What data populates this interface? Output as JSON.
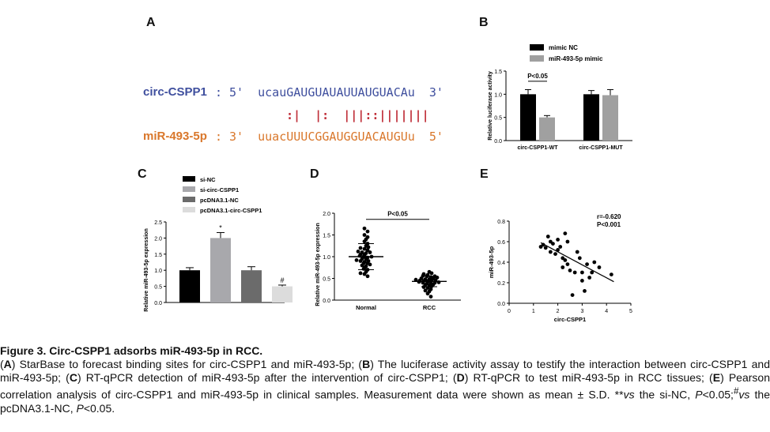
{
  "panels": {
    "A": {
      "letter": "A",
      "circ_label": "circ-CSPP1",
      "circ_colon": ":",
      "circ_seq": "5'  ucauGAUGUAUAUUAUGUACAu  3'",
      "pairing": ":|  |:  |||::|||||||",
      "mir_label": "miR-493-5p",
      "mir_colon": ":",
      "mir_seq": "3'  uuacUUUCGGAUGGUACAUGUu  5'",
      "colors": {
        "circ": "#3f4f9e",
        "mir": "#d9772b",
        "pairing": "#c0303a"
      }
    },
    "B": {
      "letter": "B"
    },
    "C": {
      "letter": "C"
    },
    "D": {
      "letter": "D"
    },
    "E": {
      "letter": "E"
    }
  },
  "chart_data": [
    {
      "panel": "B",
      "type": "bar",
      "categories": [
        "circ-CSPP1-WT",
        "circ-CSPP1-MUT"
      ],
      "series": [
        {
          "name": "mimic NC",
          "values": [
            1.0,
            1.0
          ],
          "errors": [
            0.1,
            0.08
          ],
          "color": "#000000"
        },
        {
          "name": "miR-493-5p mimic",
          "values": [
            0.5,
            0.98
          ],
          "errors": [
            0.04,
            0.12
          ],
          "color": "#a0a0a0"
        }
      ],
      "ylabel": "Relative luciferase activity",
      "ylim": [
        0,
        1.5
      ],
      "yticks": [
        "0.0",
        "0.5",
        "1.0",
        "1.5"
      ],
      "annotation": "P<0.05",
      "legend": "top-left"
    },
    {
      "panel": "C",
      "type": "bar",
      "categories": [
        "si-NC",
        "si-circ-CSPP1",
        "pcDNA3.1-NC",
        "pcDNA3.1-circ-CSPP1"
      ],
      "values": [
        1.0,
        2.0,
        1.0,
        0.5
      ],
      "errors": [
        0.08,
        0.17,
        0.11,
        0.04
      ],
      "colors": [
        "#000000",
        "#a8a8ac",
        "#6b6b6b",
        "#dcdcdc"
      ],
      "markers": [
        "",
        "*",
        "",
        "#"
      ],
      "ylabel": "Relative miR-493-5p expression",
      "ylim": [
        0,
        2.5
      ],
      "yticks": [
        "0.0",
        "0.5",
        "1.0",
        "1.5",
        "2.0",
        "2.5"
      ],
      "legend": "top"
    },
    {
      "panel": "D",
      "type": "scatter",
      "categories": [
        "Normal",
        "RCC"
      ],
      "groups": [
        {
          "name": "Normal",
          "mean": 1.0,
          "sd": 0.3,
          "values": [
            0.55,
            0.6,
            0.62,
            0.65,
            0.7,
            0.72,
            0.75,
            0.78,
            0.8,
            0.82,
            0.85,
            0.85,
            0.88,
            0.9,
            0.9,
            0.92,
            0.95,
            0.95,
            0.98,
            1.0,
            1.0,
            1.02,
            1.05,
            1.05,
            1.08,
            1.1,
            1.1,
            1.12,
            1.15,
            1.18,
            1.2,
            1.22,
            1.25,
            1.3,
            1.35,
            1.4,
            1.45,
            1.5,
            1.58,
            1.65
          ]
        },
        {
          "name": "RCC",
          "mean": 0.43,
          "sd": 0.12,
          "values": [
            0.08,
            0.15,
            0.2,
            0.22,
            0.25,
            0.28,
            0.3,
            0.32,
            0.33,
            0.35,
            0.36,
            0.38,
            0.38,
            0.4,
            0.4,
            0.41,
            0.42,
            0.43,
            0.44,
            0.45,
            0.45,
            0.46,
            0.47,
            0.48,
            0.48,
            0.5,
            0.5,
            0.52,
            0.53,
            0.55,
            0.55,
            0.56,
            0.58,
            0.6,
            0.62,
            0.65
          ]
        }
      ],
      "ylabel": "Relative miR-493-5p expression",
      "ylim": [
        0,
        2.0
      ],
      "yticks": [
        "0.0",
        "0.5",
        "1.0",
        "1.5",
        "2.0"
      ],
      "annotation": "P<0.05"
    },
    {
      "panel": "E",
      "type": "scatter",
      "x": [
        1.3,
        1.4,
        1.5,
        1.6,
        1.7,
        1.7,
        1.8,
        1.9,
        2.0,
        2.0,
        2.1,
        2.2,
        2.2,
        2.3,
        2.3,
        2.4,
        2.4,
        2.5,
        2.6,
        2.7,
        2.8,
        2.9,
        3.0,
        3.0,
        3.1,
        3.2,
        3.3,
        3.4,
        3.5,
        3.7,
        4.2
      ],
      "y": [
        0.55,
        0.57,
        0.54,
        0.65,
        0.5,
        0.6,
        0.58,
        0.48,
        0.62,
        0.52,
        0.55,
        0.44,
        0.35,
        0.68,
        0.42,
        0.38,
        0.6,
        0.32,
        0.08,
        0.3,
        0.5,
        0.44,
        0.3,
        0.22,
        0.12,
        0.38,
        0.25,
        0.3,
        0.4,
        0.35,
        0.28
      ],
      "fit": {
        "x0": 1.3,
        "y0": 0.59,
        "x1": 4.3,
        "y1": 0.21
      },
      "xlabel": "circ-CSPP1",
      "ylabel": "miR-493-5p",
      "xlim": [
        0,
        5
      ],
      "ylim": [
        0,
        0.8
      ],
      "xticks": [
        "0",
        "1",
        "2",
        "3",
        "4",
        "5"
      ],
      "yticks": [
        "0.0",
        "0.2",
        "0.4",
        "0.6",
        "0.8"
      ],
      "annotation_r": "r=-0.620",
      "annotation_p": "P<0.001"
    }
  ],
  "caption": {
    "title": "Figure 3. Circ-CSPP1 adsorbs miR-493-5p in RCC.",
    "body_html": "(<b>A</b>) StarBase to forecast binding sites for circ-CSPP1 and miR-493-5p; (<b>B</b>) The luciferase activity assay to testify the interaction between circ-CSPP1 and miR-493-5p; (<b>C</b>) RT-qPCR detection of miR-493-5p after the intervention of circ-CSPP1; (<b>D</b>) RT-qPCR to test miR-493-5p in RCC tissues; (<b>E</b>) Pearson correlation analysis of circ-CSPP1 and miR-493-5p in clinical samples. Measurement data were shown as mean ± S.D. **<i>vs</i> the si-NC, <i>P</i>&lt;0.05;<sup>#</sup><i>vs</i> the pcDNA3.1-NC, <i>P</i>&lt;0.05."
  }
}
